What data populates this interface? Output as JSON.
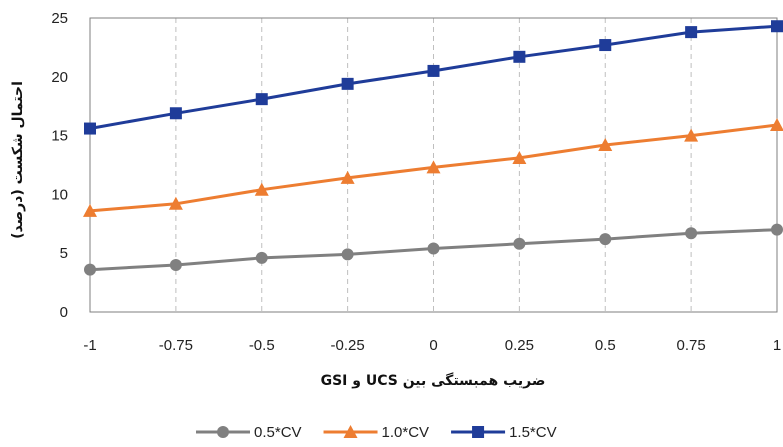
{
  "chart_data": {
    "type": "line",
    "title": "",
    "xlabel": "ضریب همبستگی بین UCS و GSI",
    "ylabel": "احتمال شکست (درصد)",
    "x": [
      -1,
      -0.75,
      -0.5,
      -0.25,
      0,
      0.25,
      0.5,
      0.75,
      1
    ],
    "xticks": [
      "-1",
      "-0.75",
      "-0.5",
      "-0.25",
      "0",
      "0.25",
      "0.5",
      "0.75",
      "1"
    ],
    "yticks": [
      "0",
      "5",
      "10",
      "15",
      "20",
      "25"
    ],
    "xlim": [
      -1,
      1
    ],
    "ylim": [
      0,
      25
    ],
    "grid": "vertical-dashed",
    "legend_position": "bottom",
    "series": [
      {
        "name": "0.5*CV",
        "color": "#808080",
        "marker": "circle",
        "values": [
          3.6,
          4.0,
          4.6,
          4.9,
          5.4,
          5.8,
          6.2,
          6.7,
          7.0
        ]
      },
      {
        "name": "1.0*CV",
        "color": "#ED7D31",
        "marker": "triangle",
        "values": [
          8.6,
          9.2,
          10.4,
          11.4,
          12.3,
          13.1,
          14.2,
          15.0,
          15.9
        ]
      },
      {
        "name": "1.5*CV",
        "color": "#1F3C99",
        "marker": "square",
        "values": [
          15.6,
          16.9,
          18.1,
          19.4,
          20.5,
          21.7,
          22.7,
          23.8,
          24.3
        ]
      }
    ]
  }
}
